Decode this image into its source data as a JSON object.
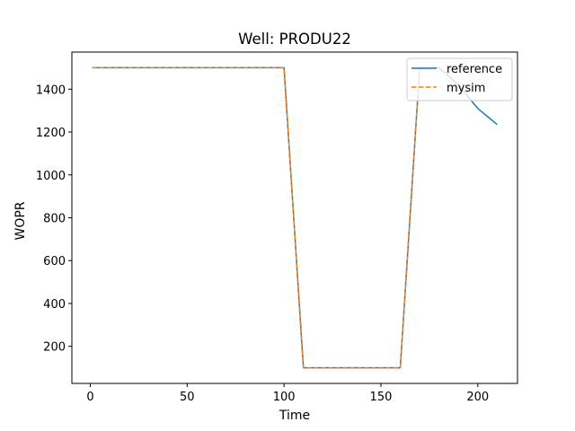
{
  "chart_data": {
    "type": "line",
    "title": "Well: PRODU22",
    "xlabel": "Time",
    "ylabel": "WOPR",
    "xlim": [
      -9.5,
      220.5
    ],
    "ylim": [
      27,
      1573
    ],
    "xticks": [
      0,
      50,
      100,
      150,
      200
    ],
    "yticks": [
      200,
      400,
      600,
      800,
      1000,
      1200,
      1400
    ],
    "grid": false,
    "legend_position": "top-right",
    "series": [
      {
        "name": "reference",
        "color": "#1f77b4",
        "style": "solid",
        "x": [
          1,
          100,
          110,
          160,
          170,
          180,
          190,
          200,
          210
        ],
        "y": [
          1500,
          1500,
          100,
          100,
          1500,
          1500,
          1420,
          1310,
          1235
        ]
      },
      {
        "name": "mysim",
        "color": "#ff7f0e",
        "style": "dashed",
        "x": [
          1,
          100,
          110,
          160,
          170
        ],
        "y": [
          1500,
          1500,
          100,
          100,
          1500
        ]
      }
    ]
  }
}
